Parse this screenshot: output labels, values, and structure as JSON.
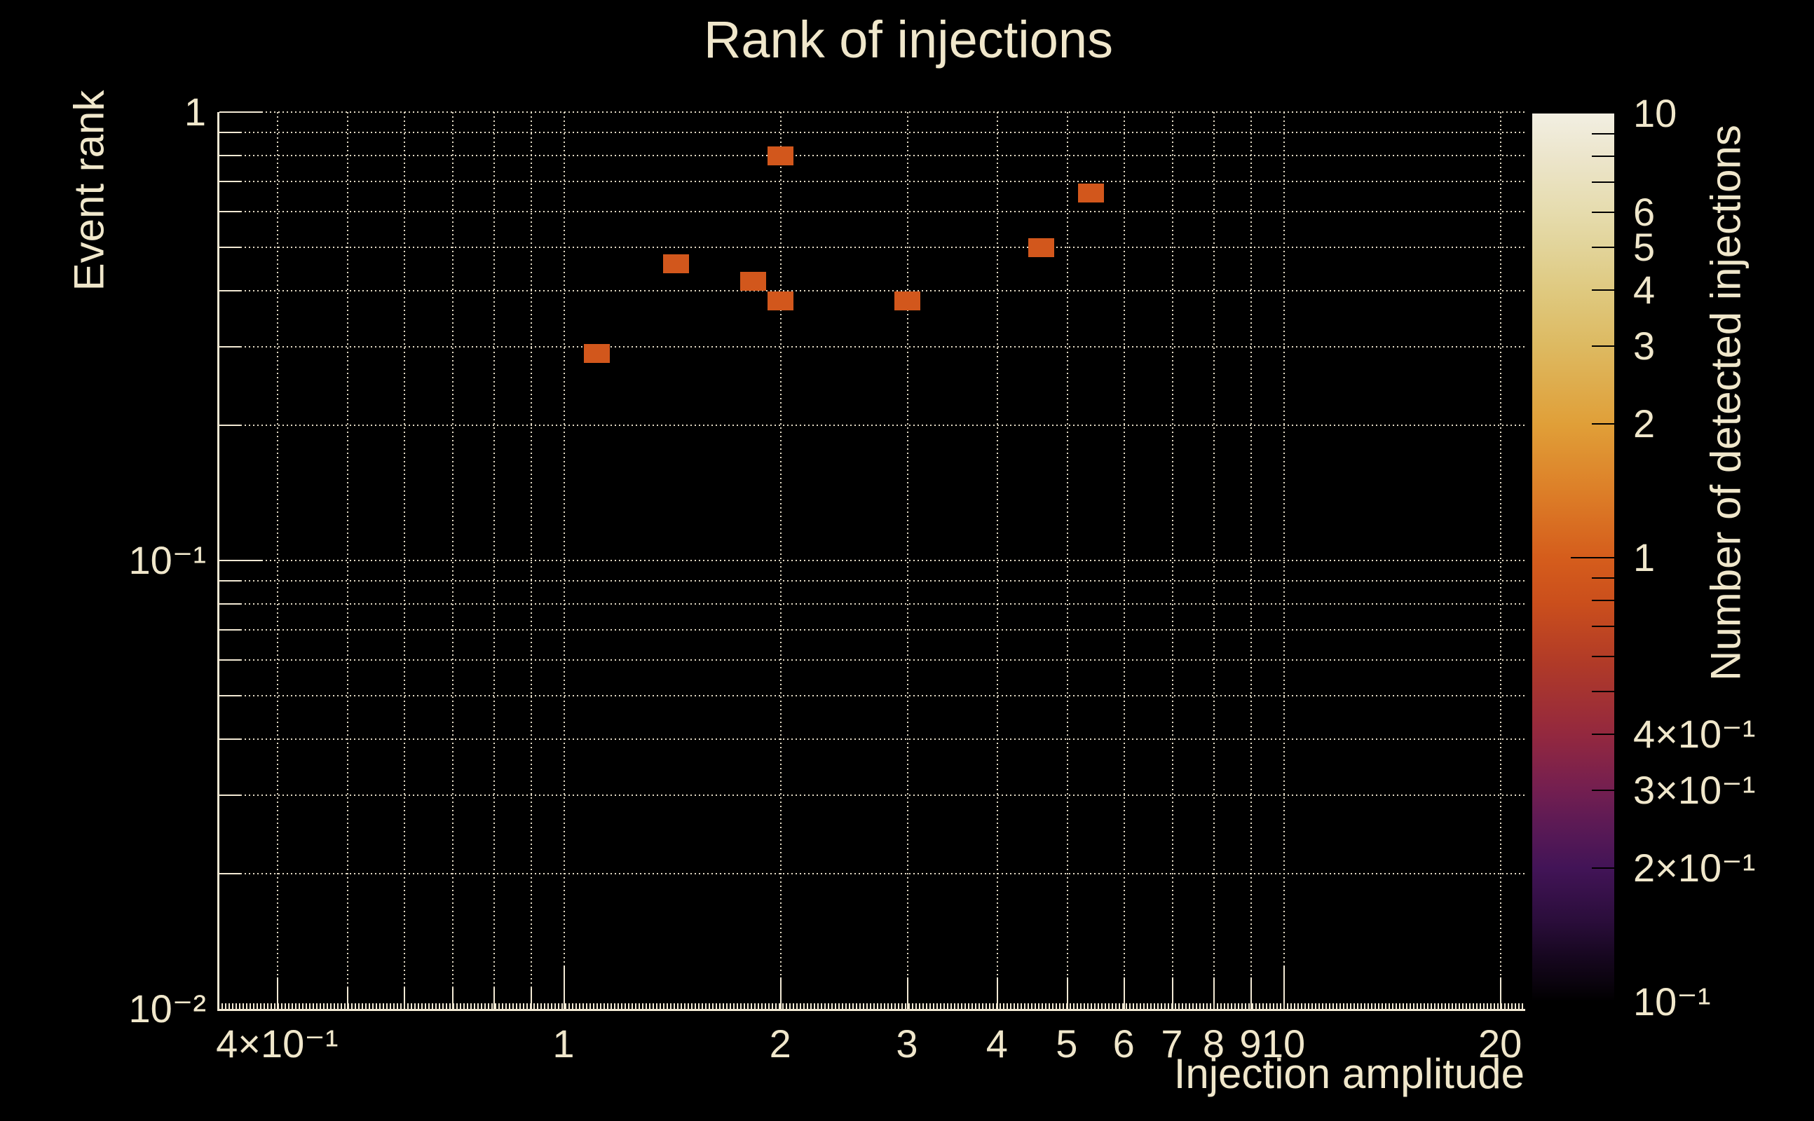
{
  "title": "Rank of injections",
  "colors": {
    "background": "#000000",
    "foreground": "#f0e7cb",
    "grid": "#efe6cf",
    "frame": "#f2e9d4",
    "marker": "#d2571c",
    "colorbar_tick": "#000000"
  },
  "axes": {
    "x": {
      "title": "Injection amplitude",
      "scale": "log",
      "range": [
        0.33,
        21.5
      ],
      "grid_values": [
        0.4,
        0.5,
        0.6,
        0.7,
        0.8,
        0.9,
        1,
        2,
        3,
        4,
        5,
        6,
        7,
        8,
        9,
        10,
        20
      ],
      "ticks": [
        {
          "v": 0.4,
          "label": "4×10⁻¹"
        },
        {
          "v": 1,
          "label": "1"
        },
        {
          "v": 2,
          "label": "2"
        },
        {
          "v": 3,
          "label": "3"
        },
        {
          "v": 4,
          "label": "4"
        },
        {
          "v": 5,
          "label": "5"
        },
        {
          "v": 6,
          "label": "6"
        },
        {
          "v": 7,
          "label": "7"
        },
        {
          "v": 8,
          "label": "8"
        },
        {
          "v": 9,
          "label": "9"
        },
        {
          "v": 10,
          "label": "10"
        },
        {
          "v": 20,
          "label": "20"
        }
      ]
    },
    "y": {
      "title": "Event rank",
      "scale": "log",
      "range": [
        0.01,
        1
      ],
      "grid_values": [
        1,
        0.9,
        0.8,
        0.7,
        0.6,
        0.5,
        0.4,
        0.3,
        0.2,
        0.1,
        0.09,
        0.08,
        0.07,
        0.06,
        0.05,
        0.04,
        0.03,
        0.02
      ],
      "ticks": [
        {
          "v": 1,
          "label": "1"
        },
        {
          "v": 0.1,
          "label": "10⁻¹"
        },
        {
          "v": 0.01,
          "label": "10⁻²"
        }
      ]
    },
    "z": {
      "title": "Number of detected injections",
      "scale": "log",
      "range": [
        0.1,
        10
      ],
      "ticks": [
        {
          "v": 10,
          "label": "10"
        },
        {
          "v": 6,
          "label": "6"
        },
        {
          "v": 5,
          "label": "5"
        },
        {
          "v": 4,
          "label": "4"
        },
        {
          "v": 3,
          "label": "3"
        },
        {
          "v": 2,
          "label": "2"
        },
        {
          "v": 1,
          "label": "1"
        },
        {
          "v": 0.4,
          "label": "4×10⁻¹"
        },
        {
          "v": 0.3,
          "label": "3×10⁻¹"
        },
        {
          "v": 0.2,
          "label": "2×10⁻¹"
        },
        {
          "v": 0.1,
          "label": "10⁻¹"
        }
      ],
      "minor_tick_values": [
        9,
        8,
        7,
        6,
        5,
        4,
        3,
        2,
        0.9,
        0.8,
        0.7,
        0.6,
        0.5,
        0.4,
        0.3,
        0.2
      ],
      "major_tick_values": [
        1
      ]
    }
  },
  "colorbar_gradient_stops": [
    {
      "at": 0.0,
      "color": "#000000"
    },
    {
      "at": 0.02,
      "color": "#0a030d"
    },
    {
      "at": 0.05,
      "color": "#16071f"
    },
    {
      "at": 0.09,
      "color": "#2a0d3a"
    },
    {
      "at": 0.15,
      "color": "#421457"
    },
    {
      "at": 0.2,
      "color": "#5c1a55"
    },
    {
      "at": 0.24,
      "color": "#741f50"
    },
    {
      "at": 0.3,
      "color": "#93283f"
    },
    {
      "at": 0.38,
      "color": "#b03a28"
    },
    {
      "at": 0.45,
      "color": "#cb4f1c"
    },
    {
      "at": 0.5,
      "color": "#d55d1c"
    },
    {
      "at": 0.58,
      "color": "#dd8129"
    },
    {
      "at": 0.65,
      "color": "#e09f38"
    },
    {
      "at": 0.74,
      "color": "#ddba62"
    },
    {
      "at": 0.8,
      "color": "#dfc97f"
    },
    {
      "at": 0.85,
      "color": "#e2d49a"
    },
    {
      "at": 0.89,
      "color": "#e6dcae"
    },
    {
      "at": 0.95,
      "color": "#ece5cb"
    },
    {
      "at": 1.0,
      "color": "#f2efe2"
    }
  ],
  "chart_data": {
    "type": "scatter",
    "title": "Rank of injections",
    "xlabel": "Injection amplitude",
    "ylabel": "Event rank",
    "zlabel": "Number of detected injections",
    "xscale": "log",
    "yscale": "log",
    "zscale": "log",
    "xlim": [
      0.33,
      21.5
    ],
    "ylim": [
      0.01,
      1
    ],
    "zlim": [
      0.1,
      10
    ],
    "grid": true,
    "legend": "colorbar-right",
    "points": [
      {
        "x": 1.11,
        "y": 0.29,
        "count": 1
      },
      {
        "x": 1.43,
        "y": 0.46,
        "count": 1
      },
      {
        "x": 1.83,
        "y": 0.42,
        "count": 1
      },
      {
        "x": 2.0,
        "y": 0.8,
        "count": 1
      },
      {
        "x": 2.0,
        "y": 0.38,
        "count": 1
      },
      {
        "x": 3.0,
        "y": 0.38,
        "count": 1
      },
      {
        "x": 4.6,
        "y": 0.5,
        "count": 1
      },
      {
        "x": 5.4,
        "y": 0.66,
        "count": 1
      }
    ]
  }
}
